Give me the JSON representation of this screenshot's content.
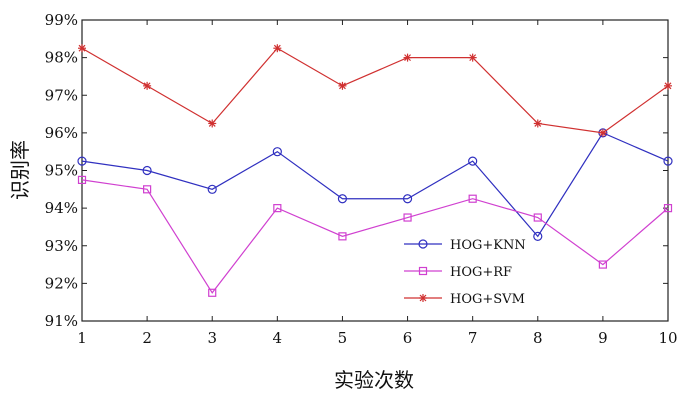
{
  "chart_data": {
    "type": "line",
    "x": [
      1,
      2,
      3,
      4,
      5,
      6,
      7,
      8,
      9,
      10
    ],
    "xlim": [
      1,
      10
    ],
    "ylim": [
      91,
      99
    ],
    "yticks": [
      91,
      92,
      93,
      94,
      95,
      96,
      97,
      98,
      99
    ],
    "ytick_suffix": "%",
    "xlabel": "实验次数",
    "ylabel": "识别率",
    "grid": false,
    "legend_position": "bottom-right",
    "series": [
      {
        "name": "HOG+KNN",
        "color": "#3030c0",
        "marker": "circle",
        "values": [
          95.25,
          95.0,
          94.5,
          95.5,
          94.25,
          94.25,
          95.25,
          93.25,
          96.0,
          95.25
        ]
      },
      {
        "name": "HOG+RF",
        "color": "#d040d0",
        "marker": "square",
        "values": [
          94.75,
          94.5,
          91.75,
          94.0,
          93.25,
          93.75,
          94.25,
          93.75,
          92.5,
          94.0
        ]
      },
      {
        "name": "HOG+SVM",
        "color": "#d03030",
        "marker": "star",
        "values": [
          98.25,
          97.25,
          96.25,
          98.25,
          97.25,
          98.0,
          98.0,
          96.25,
          96.0,
          97.25
        ]
      }
    ]
  }
}
